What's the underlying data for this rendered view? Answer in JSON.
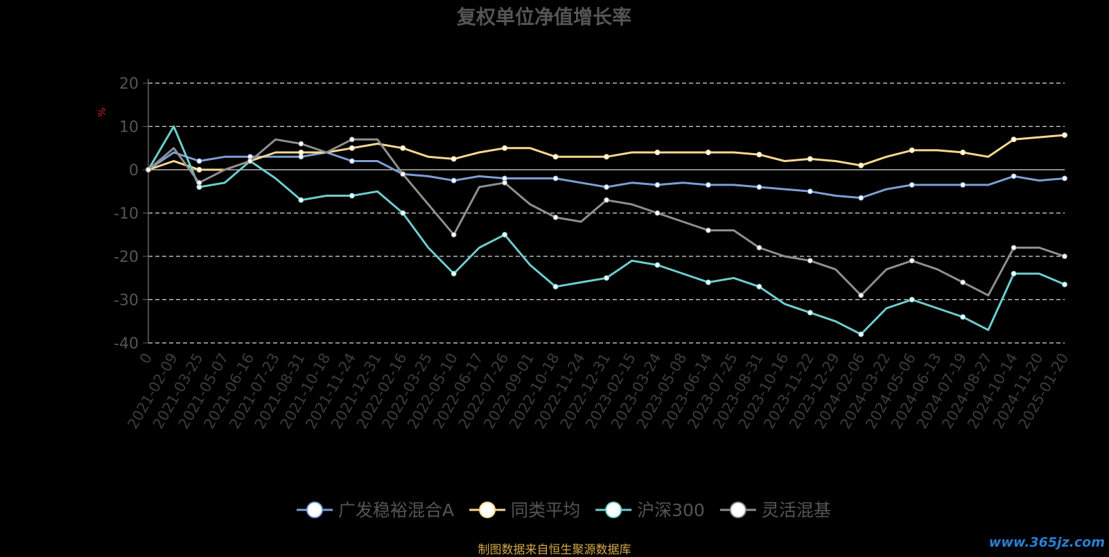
{
  "chart_data": {
    "type": "line",
    "title": "复权单位净值增长率",
    "ylabel": "%",
    "ylim": [
      -40,
      20
    ],
    "yticks": [
      20,
      10,
      0,
      -10,
      -20,
      -30,
      -40
    ],
    "grid": true,
    "legend_position": "bottom",
    "x_categories": [
      "0",
      "2021-02-09",
      "2021-03-25",
      "2021-05-07",
      "2021-06-16",
      "2021-07-23",
      "2021-08-31",
      "2021-10-18",
      "2021-11-24",
      "2021-12-31",
      "2022-02-16",
      "2022-03-25",
      "2022-05-10",
      "2022-06-17",
      "2022-07-26",
      "2022-09-01",
      "2022-10-18",
      "2022-11-24",
      "2022-12-31",
      "2023-02-15",
      "2023-03-24",
      "2023-05-08",
      "2023-06-14",
      "2023-07-25",
      "2023-08-31",
      "2023-10-16",
      "2023-11-22",
      "2023-12-29",
      "2024-02-06",
      "2024-03-22",
      "2024-05-06",
      "2024-06-13",
      "2024-07-19",
      "2024-08-27",
      "2024-10-14",
      "2024-11-20",
      "2025-01-20"
    ],
    "series": [
      {
        "name": "广发稳裕混合A",
        "color": "#7c9fd6",
        "values": [
          0,
          4,
          2,
          3,
          3,
          3,
          3,
          4,
          2,
          2,
          -1,
          -1.5,
          -2.5,
          -1.5,
          -2,
          -2,
          -2,
          -3,
          -4,
          -3,
          -3.5,
          -3,
          -3.5,
          -3.5,
          -4,
          -4.5,
          -5,
          -6,
          -6.5,
          -4.5,
          -3.5,
          -3.5,
          -3.5,
          -3.5,
          -1.5,
          -2.5,
          -2
        ]
      },
      {
        "name": "同类平均",
        "color": "#f9d88e",
        "values": [
          0,
          2,
          0,
          0,
          2,
          4,
          4,
          4,
          5,
          6,
          5,
          3,
          2.5,
          4,
          5,
          5,
          3,
          3,
          3,
          4,
          4,
          4,
          4,
          4,
          3.5,
          2,
          2.5,
          2,
          1,
          3,
          4.5,
          4.5,
          4,
          3,
          7,
          7.5,
          8
        ]
      },
      {
        "name": "沪深300",
        "color": "#6ecece",
        "values": [
          0,
          10,
          -4,
          -3,
          2,
          -2,
          -7,
          -6,
          -6,
          -5,
          -10,
          -18,
          -24,
          -18,
          -15,
          -22,
          -27,
          -26,
          -25,
          -21,
          -22,
          -24,
          -26,
          -25,
          -27,
          -31,
          -33,
          -35,
          -38,
          -32,
          -30,
          -32,
          -34,
          -37,
          -24,
          -24,
          -26.5
        ]
      },
      {
        "name": "灵活混基",
        "color": "#8f8f8f",
        "values": [
          0,
          5,
          -3,
          0,
          2,
          7,
          6,
          4,
          7,
          7,
          -1,
          -8,
          -15,
          -4,
          -3,
          -8,
          -11,
          -12,
          -7,
          -8,
          -10,
          -12,
          -14,
          -14,
          -18,
          -20,
          -21,
          -23,
          -29,
          -23,
          -21,
          -23,
          -26,
          -29,
          -18,
          -18,
          -20
        ]
      }
    ]
  },
  "footer": {
    "source": "制图数据来自恒生聚源数据库",
    "watermark": "www.365jz.com"
  }
}
